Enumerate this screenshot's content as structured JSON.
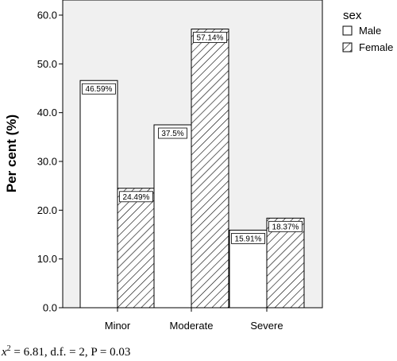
{
  "chart_data": {
    "type": "bar",
    "categories": [
      "Minor",
      "Moderate",
      "Severe"
    ],
    "series": [
      {
        "name": "Male",
        "pattern": "solid-white",
        "values": [
          46.59,
          37.5,
          15.91
        ],
        "labels": [
          "46.59%",
          "37.5%",
          "15.91%"
        ]
      },
      {
        "name": "Female",
        "pattern": "diagonal-hatch",
        "values": [
          24.49,
          57.14,
          18.37
        ],
        "labels": [
          "24.49%",
          "57.14%",
          "18.37%"
        ]
      }
    ],
    "ylabel": "Per cent (%)",
    "ylim": [
      0,
      61.5
    ],
    "yticks": [
      0,
      10,
      20,
      30,
      40,
      50,
      60
    ],
    "ytick_labels": [
      "0.0",
      "10.0",
      "20.0",
      "30.0",
      "40.0",
      "50.0",
      "60.0"
    ],
    "legend_title": "sex",
    "legend_position": "top-right",
    "plot_background": "#f0f0f0",
    "footnote": {
      "prefix": "x",
      "sup": "2",
      "rest": " = 6.81, d.f. = 2, P = 0.03"
    }
  }
}
